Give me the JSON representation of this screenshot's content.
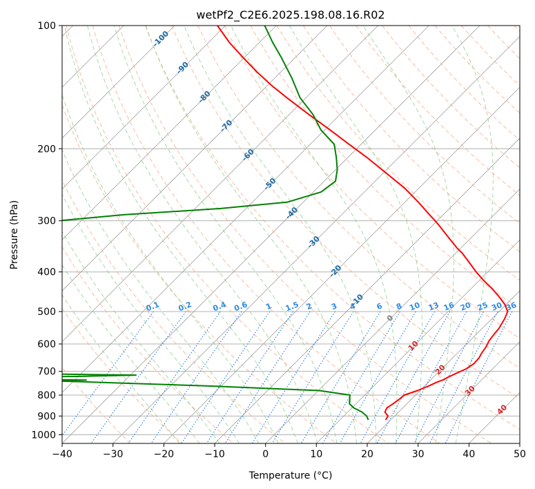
{
  "chart_data": {
    "type": "line",
    "subtype": "skew-t log-p diagram",
    "title": "wetPf2_C2E6.2025.198.08.16.R02",
    "xlabel": "Temperature (°C)",
    "ylabel": "Pressure (hPa)",
    "xlim": [
      -40,
      50
    ],
    "ylim": [
      1050,
      100
    ],
    "y_scale": "log",
    "x_ticks": [
      "−40",
      "−30",
      "−20",
      "−10",
      "0",
      "10",
      "20",
      "30",
      "40",
      "50"
    ],
    "x_tick_values": [
      -40,
      -30,
      -20,
      -10,
      0,
      10,
      20,
      30,
      40,
      50
    ],
    "y_ticks": [
      "100",
      "200",
      "300",
      "400",
      "500",
      "600",
      "700",
      "800",
      "900",
      "1000"
    ],
    "y_tick_values": [
      100,
      200,
      300,
      400,
      500,
      600,
      700,
      800,
      900,
      1000
    ],
    "grid": true,
    "series": [
      {
        "color": "#ff0000",
        "pressure": [
          920,
          900,
          880,
          860,
          840,
          820,
          800,
          780,
          760,
          745,
          735,
          725,
          710,
          690,
          670,
          650,
          630,
          610,
          590,
          570,
          550,
          520,
          500,
          480,
          460,
          440,
          420,
          400,
          380,
          360,
          350,
          330,
          310,
          300,
          290,
          270,
          250,
          230,
          210,
          195,
          180,
          165,
          150,
          140,
          130,
          120,
          110,
          100
        ],
        "temperature": [
          19.0,
          18.7,
          17.3,
          16.9,
          17.3,
          17.6,
          17.8,
          19.5,
          20.8,
          21.6,
          22.4,
          22.8,
          23.6,
          24.8,
          25.3,
          25.2,
          24.7,
          24.4,
          23.8,
          23.5,
          23.3,
          22.5,
          21.7,
          19.7,
          17.1,
          14.2,
          10.9,
          7.7,
          4.6,
          1.3,
          -0.7,
          -4.4,
          -8.3,
          -10.4,
          -12.7,
          -17.4,
          -22.7,
          -29.2,
          -36.3,
          -42.4,
          -48.9,
          -56.1,
          -63.8,
          -69.2,
          -74.6,
          -80.1,
          -85.9,
          -91.6
        ]
      },
      {
        "color": "#008000",
        "pressure": [
          920,
          900,
          880,
          860,
          840,
          820,
          800,
          780,
          760,
          745,
          738,
          735,
          730,
          725,
          720,
          715,
          712,
          705,
          700,
          695,
          690,
          686,
          680,
          670,
          660,
          650,
          645,
          640,
          630,
          620,
          610,
          600,
          595,
          590,
          580,
          560,
          540,
          520,
          500,
          480,
          460,
          440,
          420,
          400,
          380,
          360,
          340,
          320,
          300,
          290,
          280,
          270,
          255,
          240,
          225,
          210,
          195,
          180,
          165,
          150,
          135,
          120,
          110,
          100
        ],
        "temperature": [
          15.6,
          14.5,
          12.8,
          10.4,
          8.7,
          7.9,
          7.1,
          0.2,
          -22.8,
          -44.0,
          -54.6,
          -47.7,
          -64.6,
          -71.3,
          -49.5,
          -38.9,
          -50.5,
          -79.3,
          -79.0,
          -71.7,
          -65.7,
          -68.6,
          -66.0,
          -72.0,
          -78.0,
          -83.0,
          -86.4,
          -81.8,
          -66.7,
          -60.9,
          -59.1,
          -73.1,
          -83.5,
          -82.0,
          -84.0,
          -86.0,
          -88.0,
          -90.0,
          -92.0,
          -91.6,
          -91.0,
          -90.4,
          -89.8,
          -89.8,
          -90.7,
          -90.9,
          -89.1,
          -87.6,
          -84.5,
          -72.8,
          -55.0,
          -43.1,
          -38.5,
          -37.8,
          -39.7,
          -42.3,
          -45.3,
          -50.7,
          -55.3,
          -61.2,
          -66.4,
          -72.6,
          -77.4,
          -82.3
        ]
      }
    ],
    "isotherm_labels": [
      "-100",
      "-90",
      "-80",
      "-70",
      "-60",
      "-50",
      "-40",
      "-30",
      "-20",
      "-10",
      "0",
      "10",
      "20",
      "30",
      "40"
    ],
    "isotherm_label_values": [
      -100,
      -90,
      -80,
      -70,
      -60,
      -50,
      -40,
      -30,
      -20,
      -10,
      0,
      10,
      20,
      30,
      40
    ],
    "mixing_ratio_labels": [
      "0.1",
      "0.2",
      "0.4",
      "0.6",
      "1",
      "1.5",
      "2",
      "3",
      "4",
      "6",
      "8",
      "10",
      "13",
      "16",
      "20",
      "25",
      "30",
      "36"
    ],
    "mixing_ratio_values": [
      0.1,
      0.2,
      0.4,
      0.6,
      1,
      1.5,
      2,
      3,
      4,
      6,
      8,
      10,
      13,
      16,
      20,
      25,
      30,
      36
    ],
    "colors": {
      "isotherm": "#a0a0a0",
      "dry_adiabat": "#f4a582",
      "moist_adiabat": "#8fcf8f",
      "mixing_ratio": "#1f77e0",
      "isotherm_label_cold": "#1f6aa5",
      "isotherm_label_zero": "#808080",
      "isotherm_label_warm": "#d62728"
    }
  }
}
